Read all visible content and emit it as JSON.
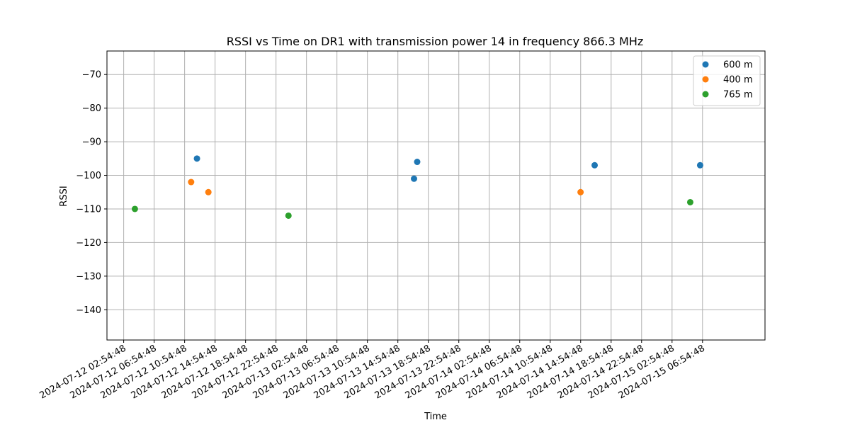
{
  "chart_data": {
    "type": "scatter",
    "title": "RSSI vs Time on DR1 with transmission power 14 in frequency 866.3 MHz",
    "xlabel": "Time",
    "ylabel": "RSSI",
    "ylim": [
      -149,
      -63
    ],
    "yticks": [
      -70,
      -80,
      -90,
      -100,
      -110,
      -120,
      -130,
      -140
    ],
    "xlim": [
      "2024-07-12 00:43:00",
      "2024-07-15 15:07:00"
    ],
    "xticks": [
      "2024-07-12 02:54:48",
      "2024-07-12 06:54:48",
      "2024-07-12 10:54:48",
      "2024-07-12 14:54:48",
      "2024-07-12 18:54:48",
      "2024-07-12 22:54:48",
      "2024-07-13 02:54:48",
      "2024-07-13 06:54:48",
      "2024-07-13 10:54:48",
      "2024-07-13 14:54:48",
      "2024-07-13 18:54:48",
      "2024-07-13 22:54:48",
      "2024-07-14 02:54:48",
      "2024-07-14 06:54:48",
      "2024-07-14 10:54:48",
      "2024-07-14 14:54:48",
      "2024-07-14 18:54:48",
      "2024-07-14 22:54:48",
      "2024-07-15 02:54:48",
      "2024-07-15 06:54:48"
    ],
    "grid": true,
    "legend_position": "top-right",
    "series": [
      {
        "name": "600 m",
        "color": "#1f77b4",
        "points": [
          {
            "x": "2024-07-12 12:32:00",
            "y": -95
          },
          {
            "x": "2024-07-13 17:02:00",
            "y": -101
          },
          {
            "x": "2024-07-13 17:27:00",
            "y": -96
          },
          {
            "x": "2024-07-14 16:45:00",
            "y": -97
          },
          {
            "x": "2024-07-15 06:36:00",
            "y": -97
          }
        ]
      },
      {
        "name": "400 m",
        "color": "#ff7f0e",
        "points": [
          {
            "x": "2024-07-12 11:46:00",
            "y": -102
          },
          {
            "x": "2024-07-12 14:02:00",
            "y": -105
          },
          {
            "x": "2024-07-14 14:54:00",
            "y": -105
          }
        ]
      },
      {
        "name": "765 m",
        "color": "#2ca02c",
        "points": [
          {
            "x": "2024-07-12 04:23:00",
            "y": -110
          },
          {
            "x": "2024-07-13 00:33:00",
            "y": -112
          },
          {
            "x": "2024-07-15 05:18:00",
            "y": -108
          }
        ]
      }
    ]
  }
}
